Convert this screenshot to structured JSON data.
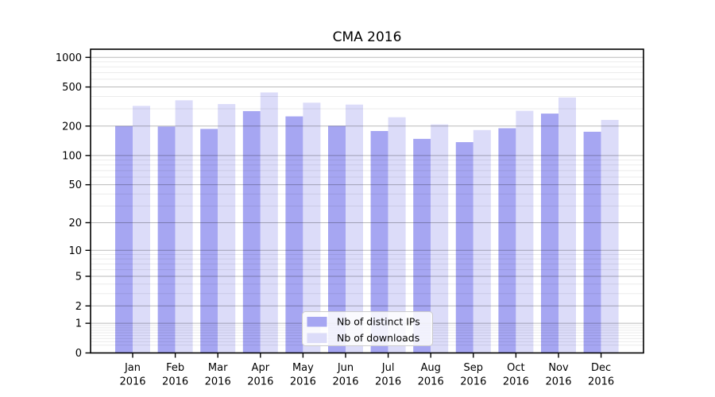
{
  "chart_data": {
    "type": "bar",
    "title": "CMA 2016",
    "categories": [
      "Jan",
      "Feb",
      "Mar",
      "Apr",
      "May",
      "Jun",
      "Jul",
      "Aug",
      "Sep",
      "Oct",
      "Nov",
      "Dec"
    ],
    "category_year": "2016",
    "series": [
      {
        "name": "Nb of distinct IPs",
        "color": "#a6a6f2",
        "values": [
          200,
          198,
          187,
          284,
          251,
          201,
          178,
          148,
          137,
          190,
          268,
          175
        ]
      },
      {
        "name": "Nb of downloads",
        "color": "#dcdcf9",
        "values": [
          321,
          366,
          335,
          440,
          346,
          331,
          246,
          208,
          182,
          286,
          391,
          231
        ]
      }
    ],
    "y_axis": {
      "scale": "symlog",
      "major_ticks": [
        0,
        1,
        2,
        5,
        10,
        20,
        50,
        100,
        200,
        500,
        1000
      ],
      "minor_ticks": [
        0.2,
        0.3,
        0.4,
        0.5,
        0.6,
        0.7,
        0.8,
        0.9,
        3,
        4,
        6,
        7,
        8,
        9,
        30,
        40,
        60,
        70,
        80,
        90,
        300,
        400,
        600,
        700,
        800,
        900
      ],
      "range": [
        0,
        1210
      ]
    },
    "legend": {
      "position": "bottom-center"
    },
    "grid": true,
    "colors": {
      "axis": "#000000",
      "major_grid": "rgba(0,0,0,0.27)",
      "minor_grid": "rgba(0,0,0,0.08)",
      "legend_border": "#cccccc",
      "legend_bg": "rgba(255,255,255,0.85)"
    }
  }
}
